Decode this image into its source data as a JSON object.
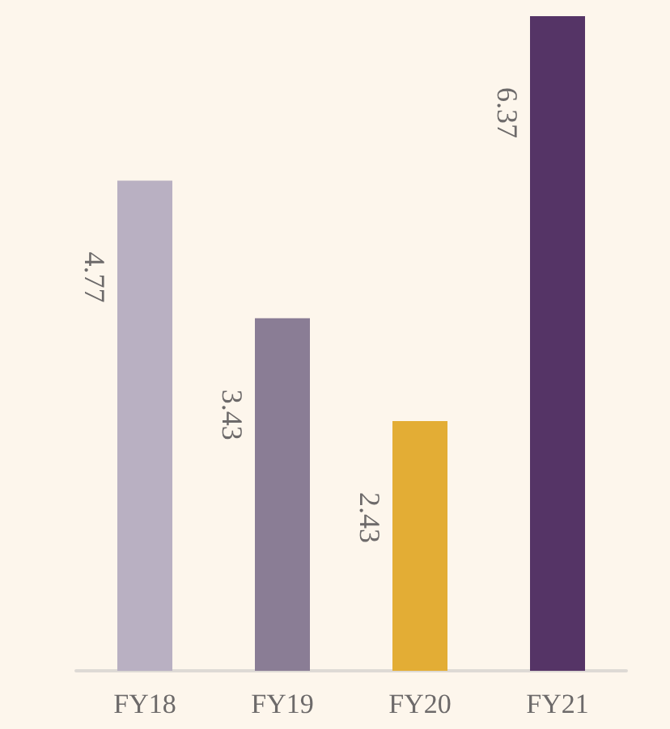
{
  "chart_data": {
    "type": "bar",
    "categories": [
      "FY18",
      "FY19",
      "FY20",
      "FY21"
    ],
    "values": [
      4.77,
      3.43,
      2.43,
      6.37
    ],
    "colors": [
      "#b9b0c2",
      "#8a7d95",
      "#e3ad35",
      "#553466"
    ],
    "data_labels": true
  }
}
